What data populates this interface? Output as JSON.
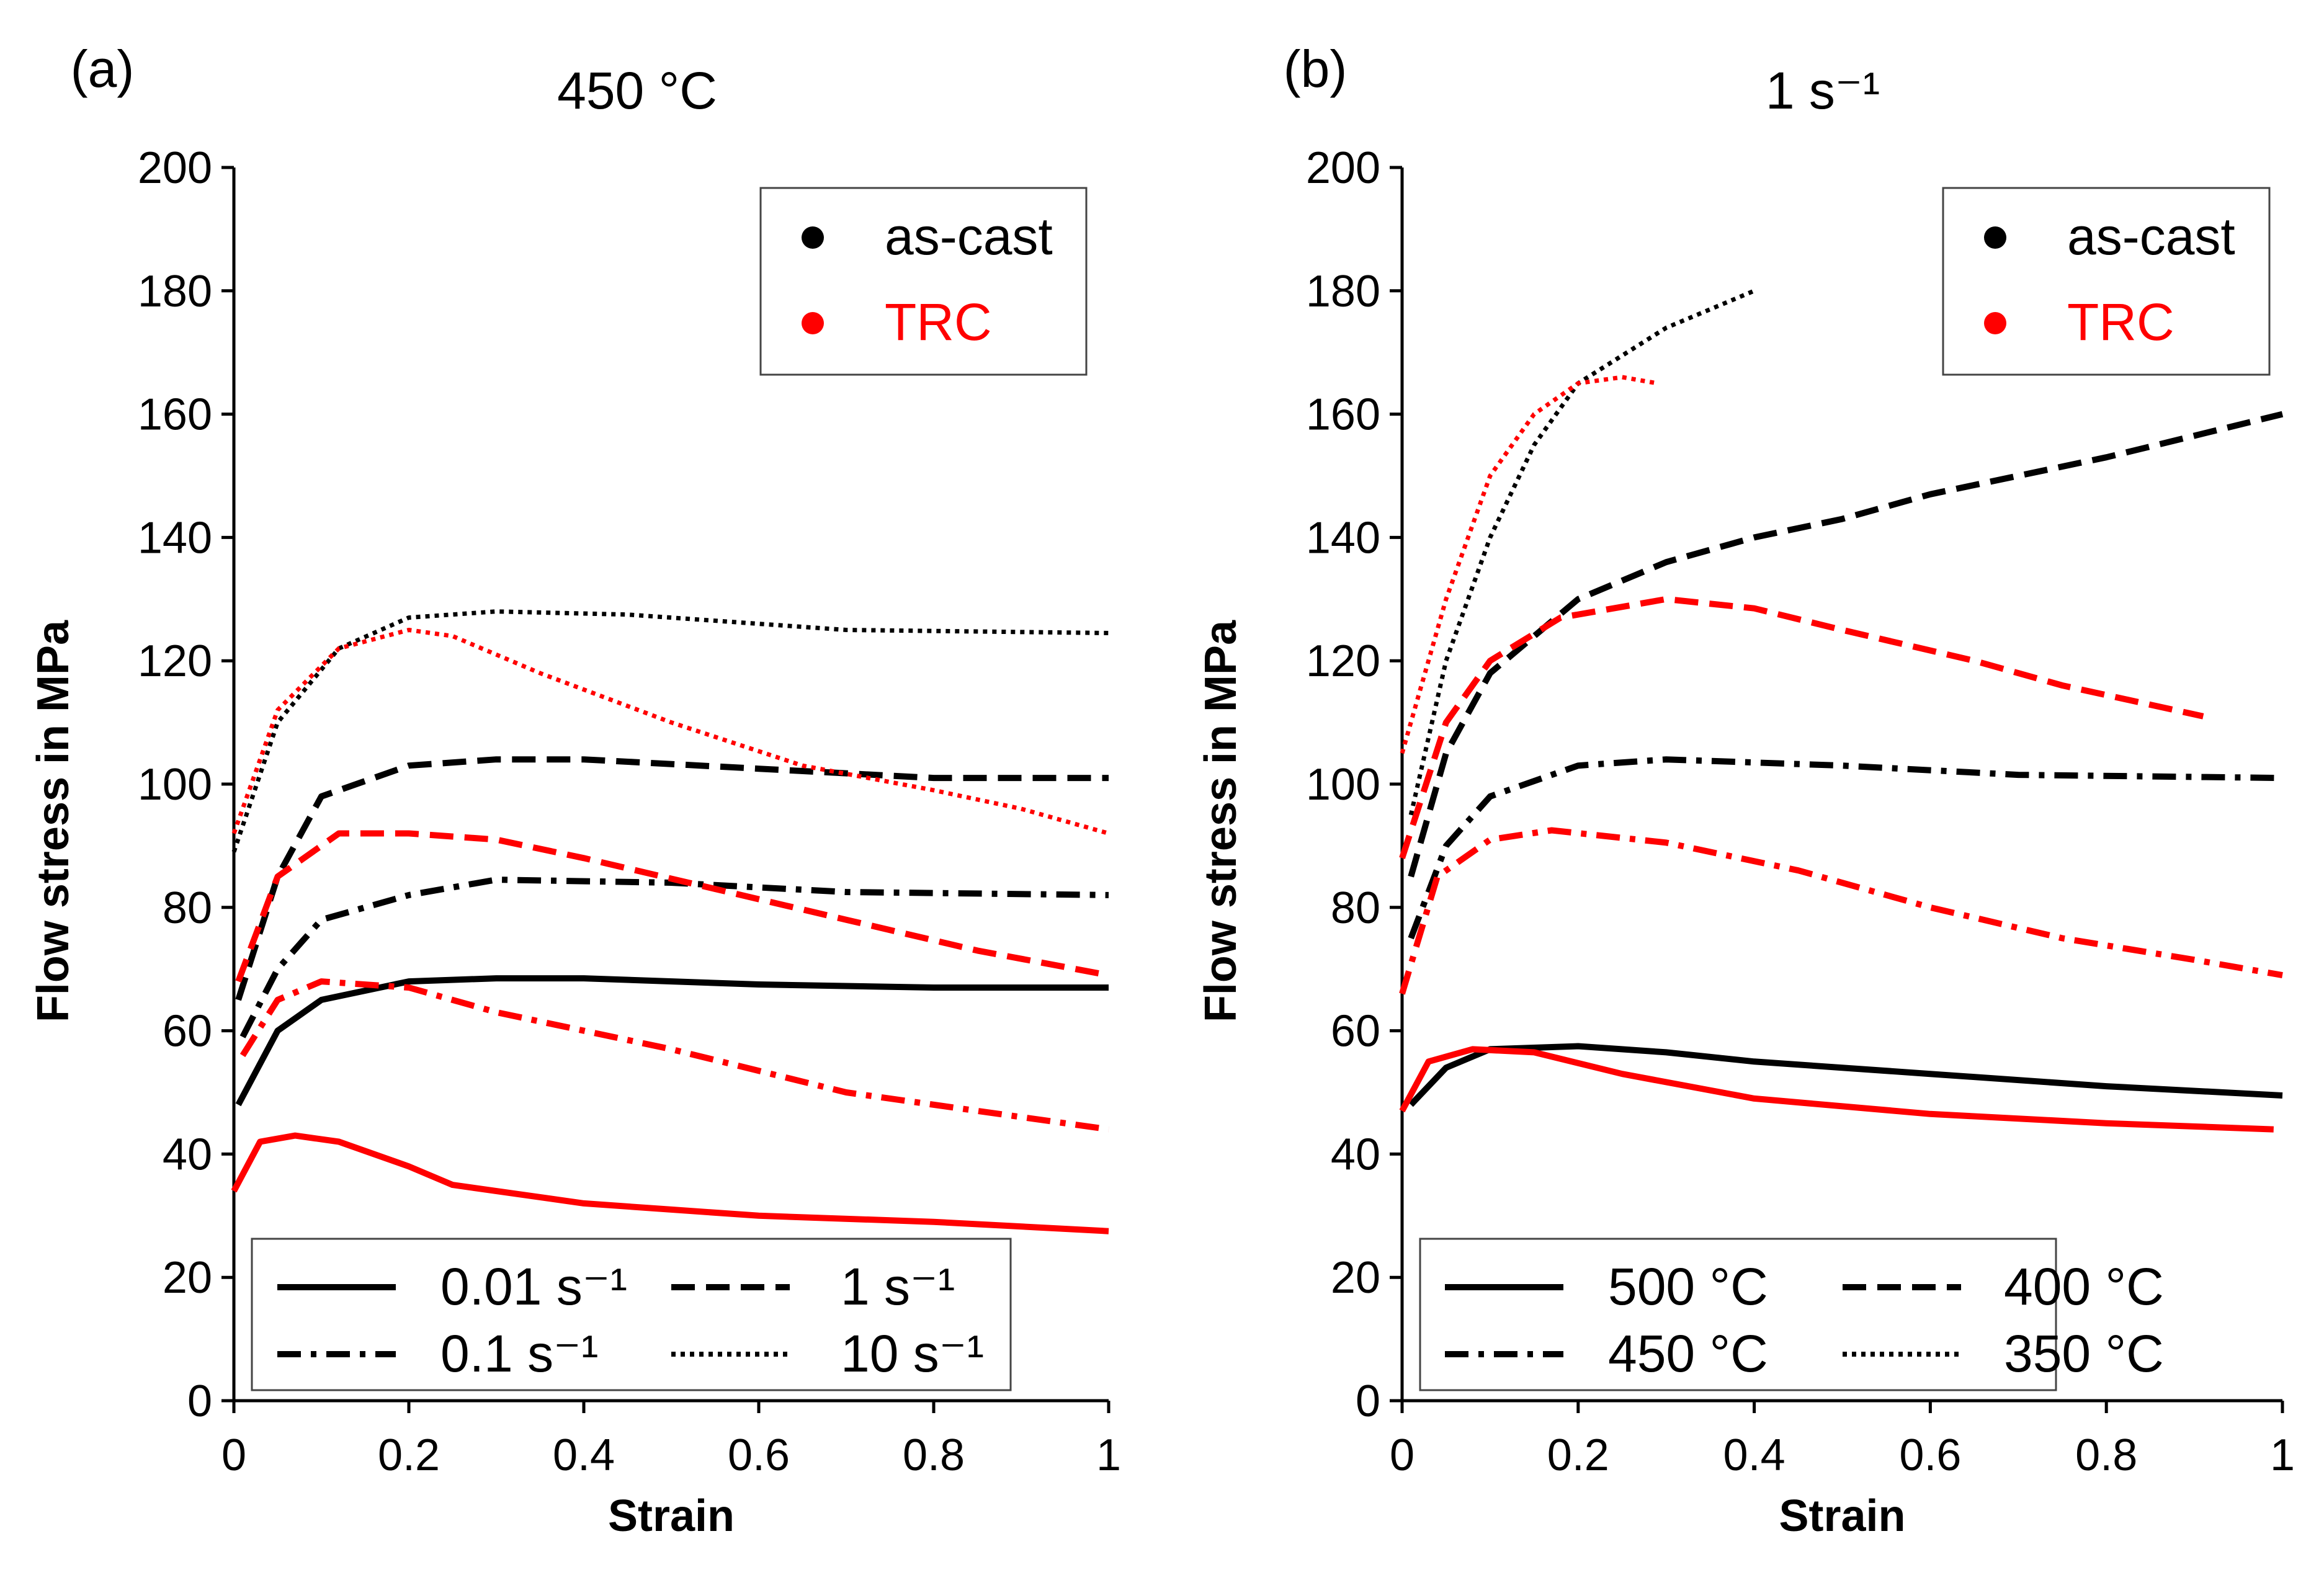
{
  "colors": {
    "as_cast": "#000000",
    "trc": "#ff0000"
  },
  "chart_data": [
    {
      "type": "line",
      "panel_label": "(a)",
      "title": "450 °C",
      "xlabel": "Strain",
      "ylabel": "Flow stress in MPa",
      "xlim": [
        0,
        1
      ],
      "ylim": [
        0,
        200
      ],
      "xticks": [
        "0",
        "0.2",
        "0.4",
        "0.6",
        "0.8",
        "1"
      ],
      "yticks": [
        "0",
        "20",
        "40",
        "60",
        "80",
        "100",
        "120",
        "140",
        "160",
        "180",
        "200"
      ],
      "material_legend": [
        {
          "label": "as-cast",
          "material": "as_cast"
        },
        {
          "label": "TRC",
          "material": "trc"
        }
      ],
      "style_legend": [
        {
          "label": "0.01 s⁻¹",
          "style": "solid"
        },
        {
          "label": "1 s⁻¹",
          "style": "dashed"
        },
        {
          "label": "0.1 s⁻¹",
          "style": "dashdot"
        },
        {
          "label": "10 s⁻¹",
          "style": "dotted"
        }
      ],
      "series": [
        {
          "name": "as-cast 0.01 s⁻¹",
          "material": "as_cast",
          "style": "solid",
          "x": [
            0.005,
            0.05,
            0.1,
            0.2,
            0.3,
            0.4,
            0.6,
            0.8,
            1
          ],
          "y": [
            48,
            60,
            65,
            68,
            68.5,
            68.5,
            67.5,
            67,
            67
          ]
        },
        {
          "name": "TRC 0.01 s⁻¹",
          "material": "trc",
          "style": "solid",
          "x": [
            0,
            0.03,
            0.07,
            0.12,
            0.2,
            0.25,
            0.4,
            0.5,
            0.6,
            0.8,
            1
          ],
          "y": [
            34,
            42,
            43,
            42,
            38,
            35,
            32,
            31,
            30,
            29,
            27.5
          ]
        },
        {
          "name": "as-cast 0.1 s⁻¹",
          "material": "as_cast",
          "style": "dashdot",
          "x": [
            0.01,
            0.05,
            0.1,
            0.2,
            0.3,
            0.5,
            0.7,
            1
          ],
          "y": [
            59,
            70,
            78,
            82,
            84.5,
            84,
            82.5,
            82
          ]
        },
        {
          "name": "TRC 0.1 s⁻¹",
          "material": "trc",
          "style": "dashdot",
          "x": [
            0.01,
            0.05,
            0.1,
            0.2,
            0.3,
            0.5,
            0.7,
            0.85,
            1
          ],
          "y": [
            56,
            65,
            68,
            67,
            63,
            57,
            50,
            47,
            44
          ]
        },
        {
          "name": "as-cast 1 s⁻¹",
          "material": "as_cast",
          "style": "dashed",
          "x": [
            0.005,
            0.05,
            0.1,
            0.2,
            0.3,
            0.4,
            0.6,
            0.8,
            1
          ],
          "y": [
            65,
            85,
            98,
            103,
            104,
            104,
            102.5,
            101,
            101
          ]
        },
        {
          "name": "TRC 1 s⁻¹",
          "material": "trc",
          "style": "dashed",
          "x": [
            0.005,
            0.05,
            0.12,
            0.2,
            0.3,
            0.4,
            0.55,
            0.7,
            0.85,
            1
          ],
          "y": [
            68,
            85,
            92,
            92,
            91,
            88,
            83,
            78,
            73,
            69
          ]
        },
        {
          "name": "as-cast 10 s⁻¹",
          "material": "as_cast",
          "style": "dotted",
          "x": [
            0,
            0.05,
            0.12,
            0.2,
            0.3,
            0.45,
            0.7,
            1
          ],
          "y": [
            89,
            110,
            122,
            127,
            128,
            127.5,
            125,
            124.5
          ]
        },
        {
          "name": "TRC 10 s⁻¹",
          "material": "trc",
          "style": "dotted",
          "x": [
            0,
            0.05,
            0.12,
            0.2,
            0.25,
            0.35,
            0.5,
            0.65,
            0.8,
            0.9,
            1
          ],
          "y": [
            92,
            112,
            122,
            125,
            124,
            118,
            110,
            103,
            99,
            96,
            92
          ]
        }
      ]
    },
    {
      "type": "line",
      "panel_label": "(b)",
      "title": "1 s⁻¹",
      "xlabel": "Strain",
      "ylabel": "Flow stress in MPa",
      "xlim": [
        0,
        1
      ],
      "ylim": [
        0,
        200
      ],
      "xticks": [
        "0",
        "0.2",
        "0.4",
        "0.6",
        "0.8",
        "1"
      ],
      "yticks": [
        "0",
        "20",
        "40",
        "60",
        "80",
        "100",
        "120",
        "140",
        "160",
        "180",
        "200"
      ],
      "material_legend": [
        {
          "label": "as-cast",
          "material": "as_cast"
        },
        {
          "label": "TRC",
          "material": "trc"
        }
      ],
      "style_legend": [
        {
          "label": "500 °C",
          "style": "solid"
        },
        {
          "label": "400 °C",
          "style": "dashed"
        },
        {
          "label": "450 °C",
          "style": "dashdot"
        },
        {
          "label": "350 °C",
          "style": "dotted"
        }
      ],
      "series": [
        {
          "name": "as-cast 500 °C",
          "material": "as_cast",
          "style": "solid",
          "x": [
            0.01,
            0.05,
            0.1,
            0.2,
            0.3,
            0.4,
            0.6,
            0.8,
            1
          ],
          "y": [
            48,
            54,
            57,
            57.5,
            56.5,
            55,
            53,
            51,
            49.5
          ]
        },
        {
          "name": "TRC 500 °C",
          "material": "trc",
          "style": "solid",
          "x": [
            0,
            0.03,
            0.08,
            0.15,
            0.25,
            0.4,
            0.6,
            0.8,
            0.99
          ],
          "y": [
            47,
            55,
            57,
            56.5,
            53,
            49,
            46.5,
            45,
            44
          ]
        },
        {
          "name": "as-cast 450 °C",
          "material": "as_cast",
          "style": "dashdot",
          "x": [
            0.01,
            0.05,
            0.1,
            0.2,
            0.3,
            0.5,
            0.7,
            1
          ],
          "y": [
            75,
            90,
            98,
            103,
            104,
            103,
            101.5,
            101
          ]
        },
        {
          "name": "TRC 450 °C",
          "material": "trc",
          "style": "dashdot",
          "x": [
            0,
            0.04,
            0.1,
            0.17,
            0.3,
            0.45,
            0.6,
            0.75,
            0.9,
            1
          ],
          "y": [
            66,
            85,
            91,
            92.5,
            90.5,
            86,
            80,
            75,
            71.5,
            69
          ]
        },
        {
          "name": "as-cast 400 °C",
          "material": "as_cast",
          "style": "dashed",
          "x": [
            0.01,
            0.05,
            0.1,
            0.2,
            0.3,
            0.4,
            0.5,
            0.6,
            0.7,
            0.8,
            1
          ],
          "y": [
            85,
            105,
            118,
            130,
            136,
            140,
            143,
            147,
            150,
            153,
            160
          ]
        },
        {
          "name": "TRC 400 °C",
          "material": "trc",
          "style": "dashed",
          "x": [
            0,
            0.05,
            0.1,
            0.18,
            0.3,
            0.4,
            0.5,
            0.65,
            0.75,
            0.91
          ],
          "y": [
            88,
            110,
            120,
            127,
            130,
            128.5,
            125,
            120,
            116,
            111
          ]
        },
        {
          "name": "as-cast 350 °C",
          "material": "as_cast",
          "style": "dotted",
          "x": [
            0.01,
            0.05,
            0.1,
            0.15,
            0.2,
            0.3,
            0.4
          ],
          "y": [
            95,
            120,
            140,
            155,
            165,
            174,
            180
          ]
        },
        {
          "name": "TRC 350 °C",
          "material": "trc",
          "style": "dotted",
          "x": [
            0,
            0.05,
            0.1,
            0.15,
            0.2,
            0.25,
            0.29
          ],
          "y": [
            105,
            130,
            150,
            160,
            165,
            166,
            165
          ]
        }
      ]
    }
  ]
}
